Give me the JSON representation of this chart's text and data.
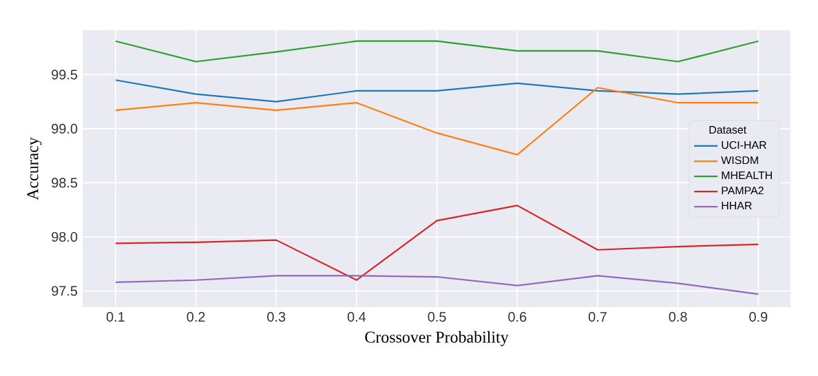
{
  "chart_data": {
    "type": "line",
    "xlabel": "Crossover Probability",
    "ylabel": "Accuracy",
    "legend_title": "Dataset",
    "x": [
      0.1,
      0.2,
      0.3,
      0.4,
      0.5,
      0.6,
      0.7,
      0.8,
      0.9
    ],
    "series": [
      {
        "name": "UCI-HAR",
        "color": "#1f77b4",
        "values": [
          99.45,
          99.32,
          99.25,
          99.35,
          99.35,
          99.42,
          99.35,
          99.32,
          99.35
        ]
      },
      {
        "name": "WISDM",
        "color": "#ff7f0e",
        "values": [
          99.17,
          99.24,
          99.17,
          99.24,
          98.96,
          98.76,
          99.38,
          99.24,
          99.24
        ]
      },
      {
        "name": "MHEALTH",
        "color": "#2ca02c",
        "values": [
          99.81,
          99.62,
          99.71,
          99.81,
          99.81,
          99.72,
          99.72,
          99.62,
          99.81
        ]
      },
      {
        "name": "PAMPA2",
        "color": "#d62728",
        "values": [
          97.94,
          97.95,
          97.97,
          97.6,
          98.15,
          98.29,
          97.88,
          97.91,
          97.93
        ]
      },
      {
        "name": "HHAR",
        "color": "#9467bd",
        "values": [
          97.58,
          97.6,
          97.64,
          97.64,
          97.63,
          97.55,
          97.64,
          97.57,
          97.47
        ]
      }
    ],
    "xlim": [
      0.059,
      0.94
    ],
    "ylim": [
      97.35,
      99.91
    ],
    "xticks": [
      0.1,
      0.2,
      0.3,
      0.4,
      0.5,
      0.6,
      0.7,
      0.8,
      0.9
    ],
    "yticks": [
      {
        "value": 97.5,
        "label": "97.5"
      },
      {
        "value": 98,
        "label": "98.0"
      },
      {
        "value": 98.5,
        "label": "98.5"
      },
      {
        "value": 99,
        "label": "99.0"
      },
      {
        "value": 99.5,
        "label": "99.5"
      }
    ],
    "grid": true,
    "legend": "right",
    "marker": "none",
    "line_style": "solid"
  }
}
